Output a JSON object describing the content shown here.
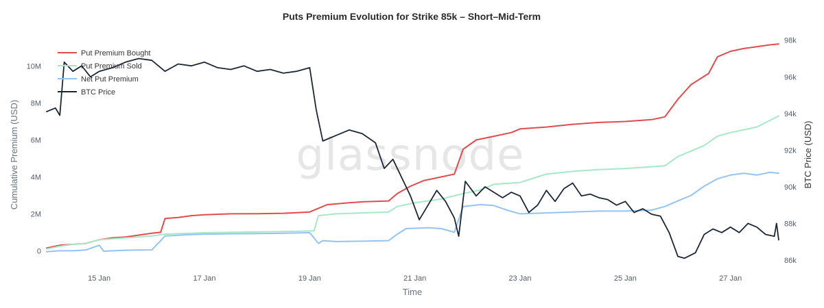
{
  "chart_data": {
    "type": "line",
    "title": "Puts Premium Evolution for Strike 85k – Short–Mid-Term",
    "xlabel": "Time",
    "ylabel_left": "Cumulative Premium (USD)",
    "ylabel_right": "BTC Price (USD)",
    "watermark": "glassnode",
    "x_domain": [
      "2025-01-14T00:00",
      "2025-01-27T22:00"
    ],
    "x_ticks": [
      {
        "date": "2025-01-15T00:00",
        "label": "15 Jan"
      },
      {
        "date": "2025-01-17T00:00",
        "label": "17 Jan"
      },
      {
        "date": "2025-01-19T00:00",
        "label": "19 Jan"
      },
      {
        "date": "2025-01-21T00:00",
        "label": "21 Jan"
      },
      {
        "date": "2025-01-23T00:00",
        "label": "23 Jan"
      },
      {
        "date": "2025-01-25T00:00",
        "label": "25 Jan"
      },
      {
        "date": "2025-01-27T00:00",
        "label": "27 Jan"
      }
    ],
    "y_left": {
      "range": [
        -800000,
        11800000
      ],
      "ticks": [
        {
          "value": 0,
          "label": "0"
        },
        {
          "value": 2000000,
          "label": "2M"
        },
        {
          "value": 4000000,
          "label": "4M"
        },
        {
          "value": 6000000,
          "label": "6M"
        },
        {
          "value": 8000000,
          "label": "8M"
        },
        {
          "value": 10000000,
          "label": "10M"
        }
      ]
    },
    "y_right": {
      "range": [
        85700,
        98400
      ],
      "ticks": [
        {
          "value": 86000,
          "label": "86k"
        },
        {
          "value": 88000,
          "label": "88k"
        },
        {
          "value": 90000,
          "label": "90k"
        },
        {
          "value": 92000,
          "label": "92k"
        },
        {
          "value": 94000,
          "label": "94k"
        },
        {
          "value": 96000,
          "label": "96k"
        },
        {
          "value": 98000,
          "label": "98k"
        }
      ]
    },
    "legend_position": "top-left",
    "series": [
      {
        "name": "Put Premium Bought",
        "axis": "left",
        "color": "#e04b4b",
        "points": [
          [
            "2025-01-14T00:00",
            150000
          ],
          [
            "2025-01-14T06:00",
            300000
          ],
          [
            "2025-01-14T12:00",
            350000
          ],
          [
            "2025-01-14T18:00",
            400000
          ],
          [
            "2025-01-15T00:00",
            600000
          ],
          [
            "2025-01-15T06:00",
            700000
          ],
          [
            "2025-01-15T12:00",
            750000
          ],
          [
            "2025-01-15T18:00",
            850000
          ],
          [
            "2025-01-16T00:00",
            950000
          ],
          [
            "2025-01-16T04:00",
            1000000
          ],
          [
            "2025-01-16T06:00",
            1750000
          ],
          [
            "2025-01-16T12:00",
            1800000
          ],
          [
            "2025-01-16T18:00",
            1900000
          ],
          [
            "2025-01-17T00:00",
            1950000
          ],
          [
            "2025-01-17T12:00",
            2000000
          ],
          [
            "2025-01-18T00:00",
            2010000
          ],
          [
            "2025-01-18T12:00",
            2030000
          ],
          [
            "2025-01-18T18:00",
            2060000
          ],
          [
            "2025-01-19T00:00",
            2100000
          ],
          [
            "2025-01-19T04:00",
            2300000
          ],
          [
            "2025-01-19T08:00",
            2500000
          ],
          [
            "2025-01-19T18:00",
            2600000
          ],
          [
            "2025-01-20T00:00",
            2650000
          ],
          [
            "2025-01-20T12:00",
            2700000
          ],
          [
            "2025-01-20T16:00",
            3100000
          ],
          [
            "2025-01-20T22:00",
            3500000
          ],
          [
            "2025-01-21T04:00",
            3800000
          ],
          [
            "2025-01-21T12:00",
            4000000
          ],
          [
            "2025-01-21T18:00",
            4150000
          ],
          [
            "2025-01-21T22:00",
            5500000
          ],
          [
            "2025-01-22T04:00",
            6000000
          ],
          [
            "2025-01-22T12:00",
            6200000
          ],
          [
            "2025-01-22T20:00",
            6400000
          ],
          [
            "2025-01-23T00:00",
            6600000
          ],
          [
            "2025-01-23T12:00",
            6700000
          ],
          [
            "2025-01-24T00:00",
            6850000
          ],
          [
            "2025-01-24T12:00",
            6950000
          ],
          [
            "2025-01-25T00:00",
            7000000
          ],
          [
            "2025-01-25T12:00",
            7100000
          ],
          [
            "2025-01-25T18:00",
            7250000
          ],
          [
            "2025-01-26T00:00",
            8200000
          ],
          [
            "2025-01-26T06:00",
            9000000
          ],
          [
            "2025-01-26T10:00",
            9300000
          ],
          [
            "2025-01-26T14:00",
            9600000
          ],
          [
            "2025-01-26T18:00",
            10500000
          ],
          [
            "2025-01-27T00:00",
            10800000
          ],
          [
            "2025-01-27T06:00",
            10950000
          ],
          [
            "2025-01-27T12:00",
            11050000
          ],
          [
            "2025-01-27T18:00",
            11150000
          ],
          [
            "2025-01-27T22:00",
            11200000
          ]
        ]
      },
      {
        "name": "Put Premium Sold",
        "axis": "left",
        "color": "#a6e8c6",
        "points": [
          [
            "2025-01-14T00:00",
            100000
          ],
          [
            "2025-01-14T06:00",
            250000
          ],
          [
            "2025-01-14T12:00",
            350000
          ],
          [
            "2025-01-14T18:00",
            400000
          ],
          [
            "2025-01-15T00:00",
            600000
          ],
          [
            "2025-01-15T06:00",
            650000
          ],
          [
            "2025-01-15T12:00",
            700000
          ],
          [
            "2025-01-15T18:00",
            750000
          ],
          [
            "2025-01-16T00:00",
            800000
          ],
          [
            "2025-01-16T06:00",
            900000
          ],
          [
            "2025-01-16T18:00",
            950000
          ],
          [
            "2025-01-17T00:00",
            980000
          ],
          [
            "2025-01-17T12:00",
            1000000
          ],
          [
            "2025-01-18T00:00",
            1020000
          ],
          [
            "2025-01-18T12:00",
            1040000
          ],
          [
            "2025-01-18T20:00",
            1060000
          ],
          [
            "2025-01-19T02:00",
            1080000
          ],
          [
            "2025-01-19T04:00",
            1900000
          ],
          [
            "2025-01-19T12:00",
            2000000
          ],
          [
            "2025-01-20T00:00",
            2050000
          ],
          [
            "2025-01-20T12:00",
            2100000
          ],
          [
            "2025-01-20T16:00",
            2400000
          ],
          [
            "2025-01-21T00:00",
            2600000
          ],
          [
            "2025-01-21T12:00",
            2800000
          ],
          [
            "2025-01-21T22:00",
            3100000
          ],
          [
            "2025-01-22T06:00",
            3300000
          ],
          [
            "2025-01-22T12:00",
            3600000
          ],
          [
            "2025-01-23T00:00",
            3700000
          ],
          [
            "2025-01-23T12:00",
            4150000
          ],
          [
            "2025-01-24T00:00",
            4300000
          ],
          [
            "2025-01-24T12:00",
            4400000
          ],
          [
            "2025-01-25T00:00",
            4450000
          ],
          [
            "2025-01-25T12:00",
            4550000
          ],
          [
            "2025-01-25T18:00",
            4600000
          ],
          [
            "2025-01-26T00:00",
            5100000
          ],
          [
            "2025-01-26T06:00",
            5400000
          ],
          [
            "2025-01-26T12:00",
            5700000
          ],
          [
            "2025-01-26T18:00",
            6200000
          ],
          [
            "2025-01-27T00:00",
            6400000
          ],
          [
            "2025-01-27T12:00",
            6700000
          ],
          [
            "2025-01-27T22:00",
            7300000
          ]
        ]
      },
      {
        "name": "Net Put Premium",
        "axis": "left",
        "color": "#93c3f2",
        "points": [
          [
            "2025-01-14T00:00",
            -50000
          ],
          [
            "2025-01-14T06:00",
            0
          ],
          [
            "2025-01-14T12:00",
            0
          ],
          [
            "2025-01-14T18:00",
            50000
          ],
          [
            "2025-01-15T00:00",
            300000
          ],
          [
            "2025-01-15T02:00",
            -20000
          ],
          [
            "2025-01-15T12:00",
            30000
          ],
          [
            "2025-01-15T18:00",
            40000
          ],
          [
            "2025-01-16T00:00",
            50000
          ],
          [
            "2025-01-16T06:00",
            800000
          ],
          [
            "2025-01-16T18:00",
            880000
          ],
          [
            "2025-01-17T00:00",
            900000
          ],
          [
            "2025-01-17T12:00",
            920000
          ],
          [
            "2025-01-18T00:00",
            930000
          ],
          [
            "2025-01-18T12:00",
            950000
          ],
          [
            "2025-01-19T00:00",
            980000
          ],
          [
            "2025-01-19T04:00",
            400000
          ],
          [
            "2025-01-19T06:00",
            550000
          ],
          [
            "2025-01-19T12:00",
            500000
          ],
          [
            "2025-01-20T00:00",
            520000
          ],
          [
            "2025-01-20T12:00",
            550000
          ],
          [
            "2025-01-20T16:00",
            900000
          ],
          [
            "2025-01-20T20:00",
            1200000
          ],
          [
            "2025-01-21T06:00",
            1250000
          ],
          [
            "2025-01-21T12:00",
            1200000
          ],
          [
            "2025-01-21T18:00",
            1000000
          ],
          [
            "2025-01-21T22:00",
            2400000
          ],
          [
            "2025-01-22T06:00",
            2500000
          ],
          [
            "2025-01-22T12:00",
            2450000
          ],
          [
            "2025-01-22T18:00",
            2200000
          ],
          [
            "2025-01-23T00:00",
            2000000
          ],
          [
            "2025-01-23T12:00",
            2050000
          ],
          [
            "2025-01-24T00:00",
            2100000
          ],
          [
            "2025-01-24T12:00",
            2150000
          ],
          [
            "2025-01-25T00:00",
            2150000
          ],
          [
            "2025-01-25T12:00",
            2200000
          ],
          [
            "2025-01-25T18:00",
            2400000
          ],
          [
            "2025-01-26T00:00",
            2700000
          ],
          [
            "2025-01-26T06:00",
            3000000
          ],
          [
            "2025-01-26T12:00",
            3500000
          ],
          [
            "2025-01-26T18:00",
            3900000
          ],
          [
            "2025-01-27T00:00",
            4100000
          ],
          [
            "2025-01-27T06:00",
            4200000
          ],
          [
            "2025-01-27T12:00",
            4100000
          ],
          [
            "2025-01-27T18:00",
            4250000
          ],
          [
            "2025-01-27T22:00",
            4200000
          ]
        ]
      },
      {
        "name": "BTC Price",
        "axis": "right",
        "color": "#1b2535",
        "points": [
          [
            "2025-01-14T00:00",
            94100
          ],
          [
            "2025-01-14T04:00",
            94300
          ],
          [
            "2025-01-14T06:00",
            93900
          ],
          [
            "2025-01-14T08:00",
            96800
          ],
          [
            "2025-01-14T12:00",
            96300
          ],
          [
            "2025-01-14T16:00",
            96600
          ],
          [
            "2025-01-14T20:00",
            96000
          ],
          [
            "2025-01-15T00:00",
            96300
          ],
          [
            "2025-01-15T06:00",
            96500
          ],
          [
            "2025-01-15T12:00",
            96800
          ],
          [
            "2025-01-15T18:00",
            97000
          ],
          [
            "2025-01-16T00:00",
            96900
          ],
          [
            "2025-01-16T06:00",
            96300
          ],
          [
            "2025-01-16T12:00",
            96700
          ],
          [
            "2025-01-16T18:00",
            96600
          ],
          [
            "2025-01-17T00:00",
            96800
          ],
          [
            "2025-01-17T06:00",
            96500
          ],
          [
            "2025-01-17T12:00",
            96400
          ],
          [
            "2025-01-17T18:00",
            96600
          ],
          [
            "2025-01-18T00:00",
            96300
          ],
          [
            "2025-01-18T06:00",
            96400
          ],
          [
            "2025-01-18T12:00",
            96200
          ],
          [
            "2025-01-18T18:00",
            96300
          ],
          [
            "2025-01-19T00:00",
            96500
          ],
          [
            "2025-01-19T03:00",
            94200
          ],
          [
            "2025-01-19T06:00",
            92500
          ],
          [
            "2025-01-19T12:00",
            92800
          ],
          [
            "2025-01-19T18:00",
            93100
          ],
          [
            "2025-01-20T00:00",
            92900
          ],
          [
            "2025-01-20T06:00",
            92400
          ],
          [
            "2025-01-20T10:00",
            91000
          ],
          [
            "2025-01-20T14:00",
            91500
          ],
          [
            "2025-01-20T18:00",
            90500
          ],
          [
            "2025-01-20T22:00",
            89500
          ],
          [
            "2025-01-21T02:00",
            88200
          ],
          [
            "2025-01-21T06:00",
            89000
          ],
          [
            "2025-01-21T10:00",
            89800
          ],
          [
            "2025-01-21T14:00",
            89200
          ],
          [
            "2025-01-21T18:00",
            88300
          ],
          [
            "2025-01-21T20:00",
            87300
          ],
          [
            "2025-01-21T23:00",
            90300
          ],
          [
            "2025-01-22T04:00",
            89500
          ],
          [
            "2025-01-22T08:00",
            90000
          ],
          [
            "2025-01-22T12:00",
            89700
          ],
          [
            "2025-01-22T16:00",
            89400
          ],
          [
            "2025-01-22T20:00",
            89700
          ],
          [
            "2025-01-23T00:00",
            89500
          ],
          [
            "2025-01-23T04:00",
            88600
          ],
          [
            "2025-01-23T08:00",
            89000
          ],
          [
            "2025-01-23T12:00",
            89800
          ],
          [
            "2025-01-23T16:00",
            89200
          ],
          [
            "2025-01-23T20:00",
            89900
          ],
          [
            "2025-01-24T00:00",
            90200
          ],
          [
            "2025-01-24T04:00",
            89500
          ],
          [
            "2025-01-24T08:00",
            89600
          ],
          [
            "2025-01-24T12:00",
            89400
          ],
          [
            "2025-01-24T16:00",
            89300
          ],
          [
            "2025-01-24T20:00",
            89000
          ],
          [
            "2025-01-25T00:00",
            89200
          ],
          [
            "2025-01-25T04:00",
            88600
          ],
          [
            "2025-01-25T08:00",
            88800
          ],
          [
            "2025-01-25T12:00",
            88500
          ],
          [
            "2025-01-25T16:00",
            88400
          ],
          [
            "2025-01-25T20:00",
            87500
          ],
          [
            "2025-01-26T00:00",
            86200
          ],
          [
            "2025-01-26T03:00",
            86100
          ],
          [
            "2025-01-26T08:00",
            86400
          ],
          [
            "2025-01-26T12:00",
            87400
          ],
          [
            "2025-01-26T16:00",
            87700
          ],
          [
            "2025-01-26T20:00",
            87500
          ],
          [
            "2025-01-27T00:00",
            87800
          ],
          [
            "2025-01-27T04:00",
            87500
          ],
          [
            "2025-01-27T08:00",
            88000
          ],
          [
            "2025-01-27T12:00",
            87800
          ],
          [
            "2025-01-27T16:00",
            87400
          ],
          [
            "2025-01-27T20:00",
            87300
          ],
          [
            "2025-01-27T21:00",
            88000
          ],
          [
            "2025-01-27T22:00",
            87100
          ]
        ]
      }
    ]
  }
}
